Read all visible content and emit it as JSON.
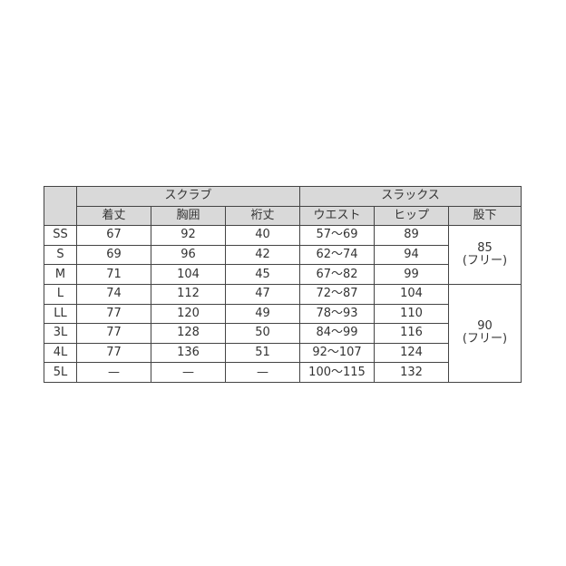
{
  "groups": {
    "scrub": "スクラブ",
    "slacks": "スラックス"
  },
  "columns": [
    "着丈",
    "胸囲",
    "裄丈",
    "ウエスト",
    "ヒップ",
    "股下"
  ],
  "rows": [
    {
      "size": "SS",
      "kitake": "67",
      "kyoui": "92",
      "yukitake": "40",
      "waist": "57〜69",
      "hip": "89"
    },
    {
      "size": "S",
      "kitake": "69",
      "kyoui": "96",
      "yukitake": "42",
      "waist": "62〜74",
      "hip": "94"
    },
    {
      "size": "M",
      "kitake": "71",
      "kyoui": "104",
      "yukitake": "45",
      "waist": "67〜82",
      "hip": "99"
    },
    {
      "size": "L",
      "kitake": "74",
      "kyoui": "112",
      "yukitake": "47",
      "waist": "72〜87",
      "hip": "104"
    },
    {
      "size": "LL",
      "kitake": "77",
      "kyoui": "120",
      "yukitake": "49",
      "waist": "78〜93",
      "hip": "110"
    },
    {
      "size": "3L",
      "kitake": "77",
      "kyoui": "128",
      "yukitake": "50",
      "waist": "84〜99",
      "hip": "116"
    },
    {
      "size": "4L",
      "kitake": "77",
      "kyoui": "136",
      "yukitake": "51",
      "waist": "92〜107",
      "hip": "124"
    },
    {
      "size": "5L",
      "kitake": "—",
      "kyoui": "—",
      "yukitake": "—",
      "waist": "100〜115",
      "hip": "132"
    }
  ],
  "inseam": [
    {
      "value": "85",
      "note": "(フリー)"
    },
    {
      "value": "90",
      "note": "(フリー)"
    }
  ]
}
